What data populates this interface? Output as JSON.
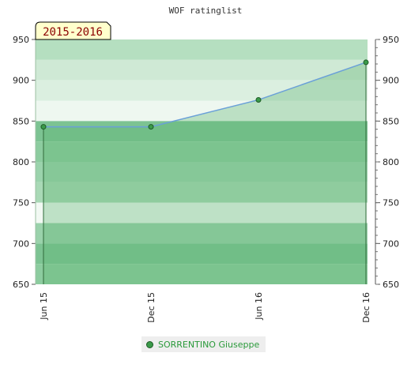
{
  "chart_data": {
    "type": "area",
    "title": "WOF ratinglist",
    "period_badge": "2015-2016",
    "x": [
      "Jun 15",
      "Dec 15",
      "Jun 16",
      "Dec 16"
    ],
    "series": [
      {
        "name": "SORRENTINO Giuseppe",
        "values": [
          843,
          843,
          876,
          922
        ]
      }
    ],
    "ylim": [
      650,
      950
    ],
    "yticks": [
      650,
      700,
      750,
      800,
      850,
      900,
      950
    ],
    "xlabel": "",
    "ylabel": "",
    "grid": true,
    "legend": "bottom-center",
    "colors": {
      "line": "#6aa0d8",
      "area": "#7cc08a",
      "marker": "#3b9a4a",
      "badge_bg": "#ffffcc",
      "badge_text": "#8b0000"
    }
  }
}
